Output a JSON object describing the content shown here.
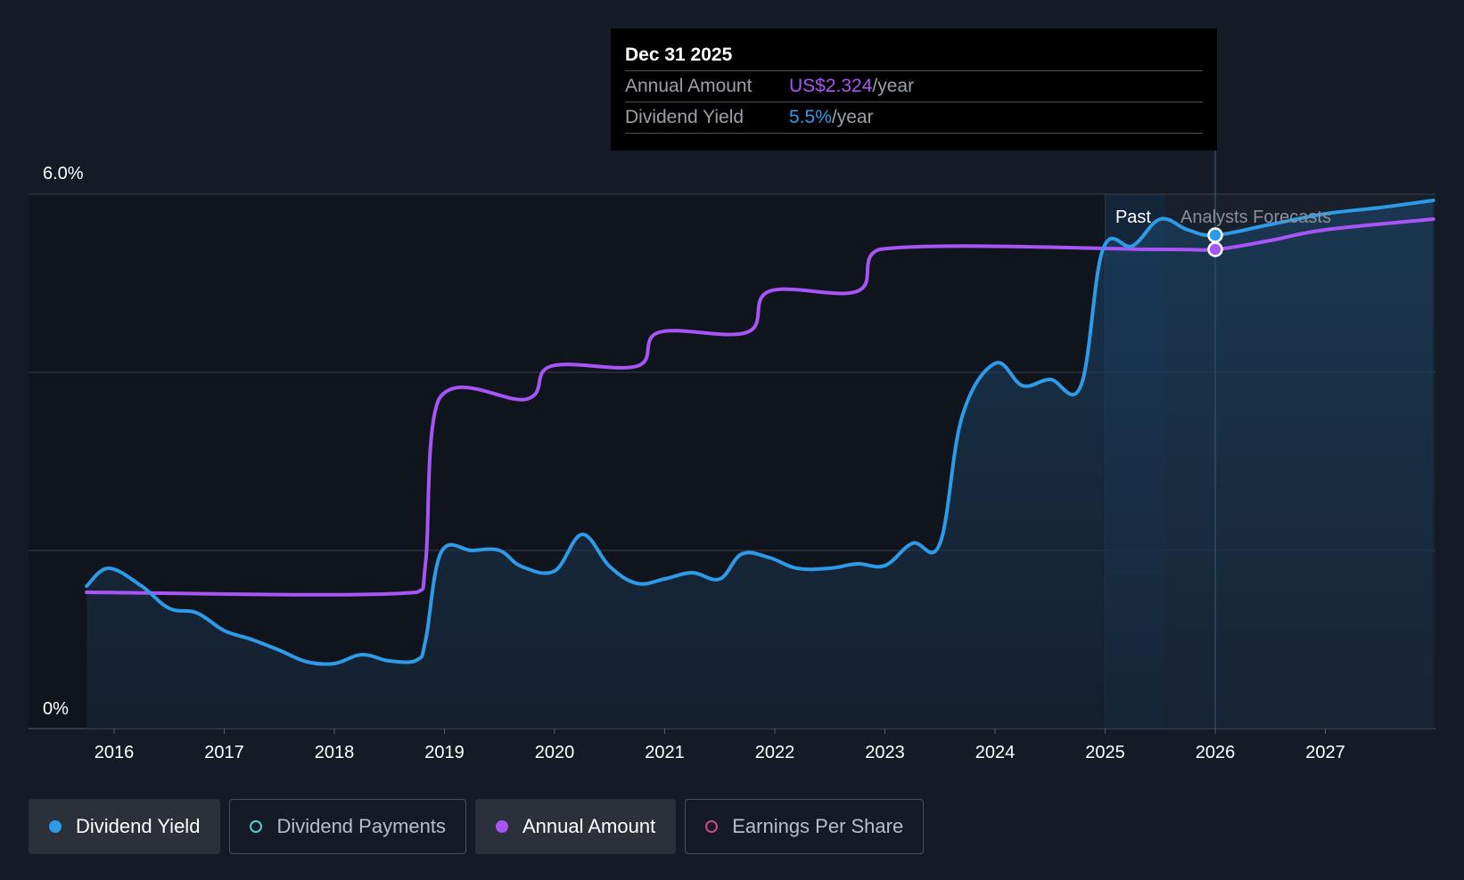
{
  "tooltip": {
    "date": "Dec 31 2025",
    "annual_label": "Annual Amount",
    "annual_value": "US$2.324",
    "annual_unit": "/year",
    "yield_label": "Dividend Yield",
    "yield_value": "5.5%",
    "yield_unit": "/year"
  },
  "regions": {
    "past": "Past",
    "forecast": "Analysts Forecasts"
  },
  "legend": [
    {
      "label": "Dividend Yield",
      "color": "#2e9be8",
      "active": true,
      "filled": true
    },
    {
      "label": "Dividend Payments",
      "color": "#4fd1c5",
      "active": false,
      "filled": false
    },
    {
      "label": "Annual Amount",
      "color": "#a855f7",
      "active": true,
      "filled": true
    },
    {
      "label": "Earnings Per Share",
      "color": "#d0497a",
      "active": false,
      "filled": false
    }
  ],
  "colors": {
    "yield": "#2e9be8",
    "annual": "#a855f7",
    "background": "#151b26"
  },
  "chart_data": {
    "type": "line",
    "title": "",
    "xlabel": "",
    "ylabel": "",
    "y_tick_labels": [
      "0%",
      "6.0%"
    ],
    "ylim": [
      0,
      6.0
    ],
    "xlim": [
      2015.5,
      2027.98
    ],
    "x_ticks": [
      2016,
      2017,
      2018,
      2019,
      2020,
      2021,
      2022,
      2023,
      2024,
      2025,
      2026,
      2027
    ],
    "grid": true,
    "legend_position": "bottom",
    "forecast_start": 2025.55,
    "past_band_start": 2025.0,
    "highlight_x": 2026.0,
    "series": [
      {
        "name": "Dividend Yield",
        "unit": "%",
        "points": [
          [
            2015.75,
            1.6
          ],
          [
            2015.95,
            1.8
          ],
          [
            2016.25,
            1.6
          ],
          [
            2016.5,
            1.35
          ],
          [
            2016.75,
            1.3
          ],
          [
            2017.0,
            1.1
          ],
          [
            2017.25,
            1.0
          ],
          [
            2017.5,
            0.88
          ],
          [
            2017.75,
            0.75
          ],
          [
            2018.0,
            0.73
          ],
          [
            2018.25,
            0.83
          ],
          [
            2018.5,
            0.76
          ],
          [
            2018.75,
            0.77
          ],
          [
            2018.83,
            1.0
          ],
          [
            2018.97,
            1.98
          ],
          [
            2019.25,
            2.0
          ],
          [
            2019.5,
            2.0
          ],
          [
            2019.7,
            1.82
          ],
          [
            2020.0,
            1.77
          ],
          [
            2020.25,
            2.18
          ],
          [
            2020.5,
            1.82
          ],
          [
            2020.75,
            1.63
          ],
          [
            2021.0,
            1.68
          ],
          [
            2021.25,
            1.75
          ],
          [
            2021.5,
            1.68
          ],
          [
            2021.7,
            1.96
          ],
          [
            2021.95,
            1.92
          ],
          [
            2022.2,
            1.8
          ],
          [
            2022.5,
            1.8
          ],
          [
            2022.75,
            1.85
          ],
          [
            2023.0,
            1.83
          ],
          [
            2023.25,
            2.08
          ],
          [
            2023.5,
            2.08
          ],
          [
            2023.7,
            3.5
          ],
          [
            2024.0,
            4.1
          ],
          [
            2024.25,
            3.85
          ],
          [
            2024.5,
            3.92
          ],
          [
            2024.78,
            3.85
          ],
          [
            2024.98,
            5.38
          ],
          [
            2025.25,
            5.42
          ],
          [
            2025.5,
            5.72
          ],
          [
            2025.75,
            5.6
          ],
          [
            2026.0,
            5.54
          ],
          [
            2026.5,
            5.66
          ],
          [
            2027.0,
            5.78
          ],
          [
            2027.5,
            5.85
          ],
          [
            2027.98,
            5.93
          ]
        ]
      },
      {
        "name": "Annual Amount",
        "unit": "% of scale",
        "points": [
          [
            2015.75,
            1.53
          ],
          [
            2018.75,
            1.53
          ],
          [
            2018.83,
            1.88
          ],
          [
            2018.95,
            3.7
          ],
          [
            2019.75,
            3.7
          ],
          [
            2019.97,
            4.07
          ],
          [
            2020.75,
            4.07
          ],
          [
            2020.95,
            4.45
          ],
          [
            2021.75,
            4.45
          ],
          [
            2021.95,
            4.91
          ],
          [
            2022.75,
            4.91
          ],
          [
            2022.95,
            5.38
          ],
          [
            2025.5,
            5.38
          ],
          [
            2026.0,
            5.38
          ],
          [
            2026.5,
            5.48
          ],
          [
            2027.0,
            5.6
          ],
          [
            2027.98,
            5.72
          ]
        ]
      }
    ]
  }
}
